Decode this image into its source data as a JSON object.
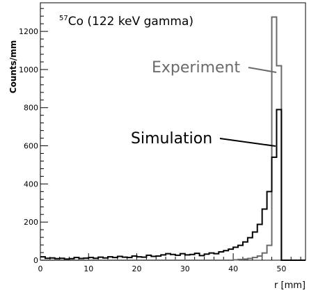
{
  "chart_data": {
    "type": "histogram",
    "title_sup": "57",
    "title": "Co (122 keV gamma)",
    "xlabel": "r [mm]",
    "ylabel": "Counts/mm",
    "xlim": [
      0,
      55
    ],
    "ylim": [
      0,
      1350
    ],
    "x_ticks": [
      0,
      10,
      20,
      30,
      40,
      50
    ],
    "y_ticks": [
      0,
      200,
      400,
      600,
      800,
      1000,
      1200
    ],
    "bin_width": 1,
    "series": [
      {
        "name": "Experiment",
        "color": "#6a6a6a",
        "values": [
          0,
          0,
          0,
          0,
          0,
          0,
          0,
          0,
          0,
          0,
          0,
          0,
          0,
          0,
          0,
          0,
          0,
          0,
          0,
          0,
          0,
          0,
          0,
          0,
          0,
          0,
          0,
          0,
          0,
          0,
          0,
          0,
          0,
          0,
          0,
          0,
          0,
          0,
          0,
          0,
          2,
          4,
          6,
          9,
          14,
          22,
          38,
          78,
          1275,
          1020,
          0,
          0,
          0,
          0,
          0
        ]
      },
      {
        "name": "Simulation",
        "color": "#000000",
        "values": [
          18,
          10,
          12,
          8,
          10,
          6,
          8,
          14,
          9,
          11,
          14,
          10,
          16,
          12,
          18,
          14,
          20,
          16,
          14,
          22,
          18,
          16,
          26,
          20,
          22,
          28,
          34,
          30,
          26,
          34,
          28,
          30,
          36,
          24,
          32,
          38,
          34,
          44,
          50,
          58,
          68,
          78,
          96,
          118,
          148,
          188,
          268,
          360,
          540,
          790,
          0,
          0,
          0,
          0,
          0
        ]
      }
    ],
    "annotations": [
      {
        "text": "Experiment",
        "series": "Experiment"
      },
      {
        "text": "Simulation",
        "series": "Simulation"
      }
    ]
  }
}
